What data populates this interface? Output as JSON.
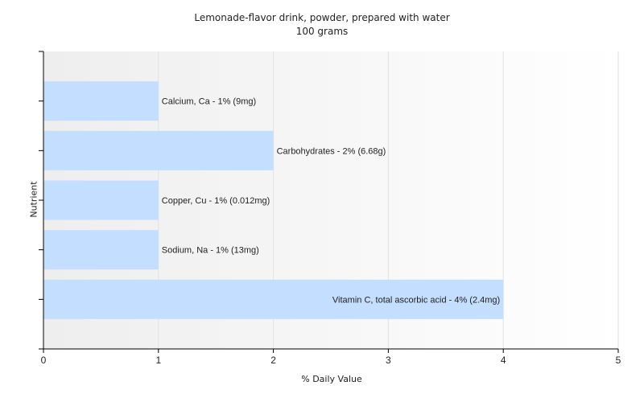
{
  "chart_data": {
    "type": "bar",
    "orientation": "horizontal",
    "title": "Lemonade-flavor drink, powder, prepared with water",
    "subtitle": "100 grams",
    "xlabel": "% Daily Value",
    "ylabel": "Nutrient",
    "xlim": [
      0,
      5
    ],
    "xticks": [
      "0",
      "1",
      "2",
      "3",
      "4",
      "5"
    ],
    "grid": true,
    "bar_color": "#c4deff",
    "categories": [
      "Calcium, Ca",
      "Carbohydrates",
      "Copper, Cu",
      "Sodium, Na",
      "Vitamin C, total ascorbic acid"
    ],
    "values": [
      1,
      2,
      1,
      1,
      4
    ],
    "labels": [
      "Calcium, Ca - 1% (9mg)",
      "Carbohydrates - 2% (6.68g)",
      "Copper, Cu - 1% (0.012mg)",
      "Sodium, Na - 1% (13mg)",
      "Vitamin C, total ascorbic acid - 4% (2.4mg)"
    ]
  }
}
